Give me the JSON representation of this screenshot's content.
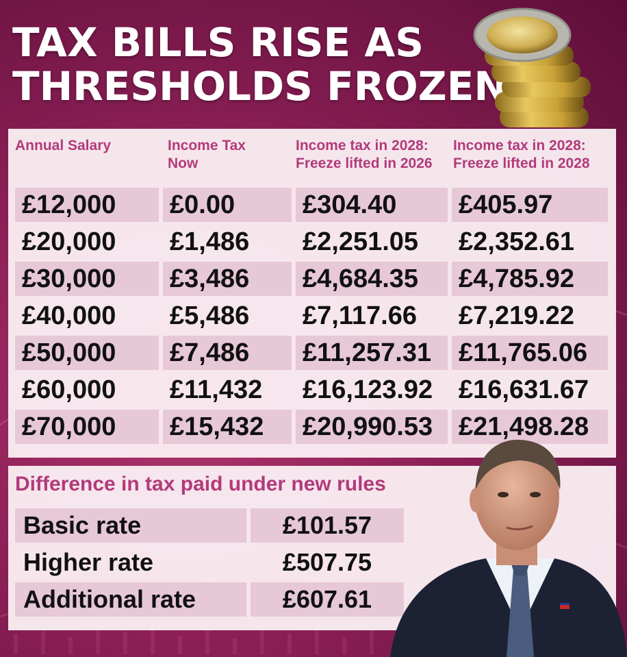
{
  "title": {
    "line1": "TAX BILLS RISE AS",
    "line2": "THRESHOLDS FROZEN"
  },
  "table": {
    "headers": [
      [
        "Annual Salary",
        ""
      ],
      [
        "Income Tax",
        "Now"
      ],
      [
        "Income tax in 2028:",
        "Freeze lifted in 2026"
      ],
      [
        "Income tax in 2028:",
        "Freeze lifted in 2028"
      ]
    ],
    "rows": [
      [
        "£12,000",
        "£0.00",
        "£304.40",
        "£405.97"
      ],
      [
        "£20,000",
        "£1,486",
        "£2,251.05",
        "£2,352.61"
      ],
      [
        "£30,000",
        "£3,486",
        "£4,684.35",
        "£4,785.92"
      ],
      [
        "£40,000",
        "£5,486",
        "£7,117.66",
        "£7,219.22"
      ],
      [
        "£50,000",
        "£7,486",
        "£11,257.31",
        "£11,765.06"
      ],
      [
        "£60,000",
        "£11,432",
        "£16,123.92",
        "£16,631.67"
      ],
      [
        "£70,000",
        "£15,432",
        "£20,990.53",
        "£21,498.28"
      ]
    ]
  },
  "difference": {
    "title": "Difference in tax paid under new rules",
    "rows": [
      [
        "Basic rate",
        "£101.57"
      ],
      [
        "Higher rate",
        "£507.75"
      ],
      [
        "Additional rate",
        "£607.61"
      ]
    ]
  },
  "colors": {
    "background": "#8a1f55",
    "header_text": "#b23a7a",
    "row_shade": "#e7c8d7",
    "panel": "#faeef3"
  },
  "icons": [
    "coin-stack-icon",
    "person-photo-icon"
  ]
}
